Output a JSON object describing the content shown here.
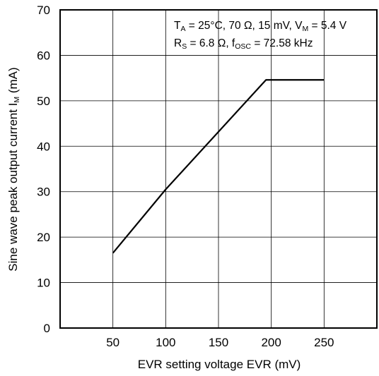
{
  "chart_data": {
    "type": "line",
    "xlabel": "EVR setting voltage  EVR  (mV)",
    "ylabel_main": "Sine wave peak output current  I",
    "ylabel_sub": "M",
    "ylabel_unit": "  (mA)",
    "xlim": [
      0,
      300
    ],
    "ylim": [
      0,
      70
    ],
    "x_ticks": [
      50,
      100,
      150,
      200,
      250
    ],
    "y_ticks": [
      0,
      10,
      20,
      30,
      40,
      50,
      60,
      70
    ],
    "grid": true,
    "series": [
      {
        "x": [
          50,
          100,
          195,
          250
        ],
        "y": [
          16.5,
          30.5,
          54.6,
          54.6
        ],
        "color": "#000000"
      }
    ],
    "annotation": {
      "line1": {
        "t": "T",
        "t_sub": "A",
        "mid": " = 25°C, 70 Ω, 15 mV, V",
        "v_sub": "M",
        "end": " = 5.4 V"
      },
      "line2": {
        "r": "R",
        "r_sub": "S",
        "mid": " = 6.8 Ω, f",
        "f_sub": "OSC",
        "end": " = 72.58 kHz"
      }
    }
  }
}
